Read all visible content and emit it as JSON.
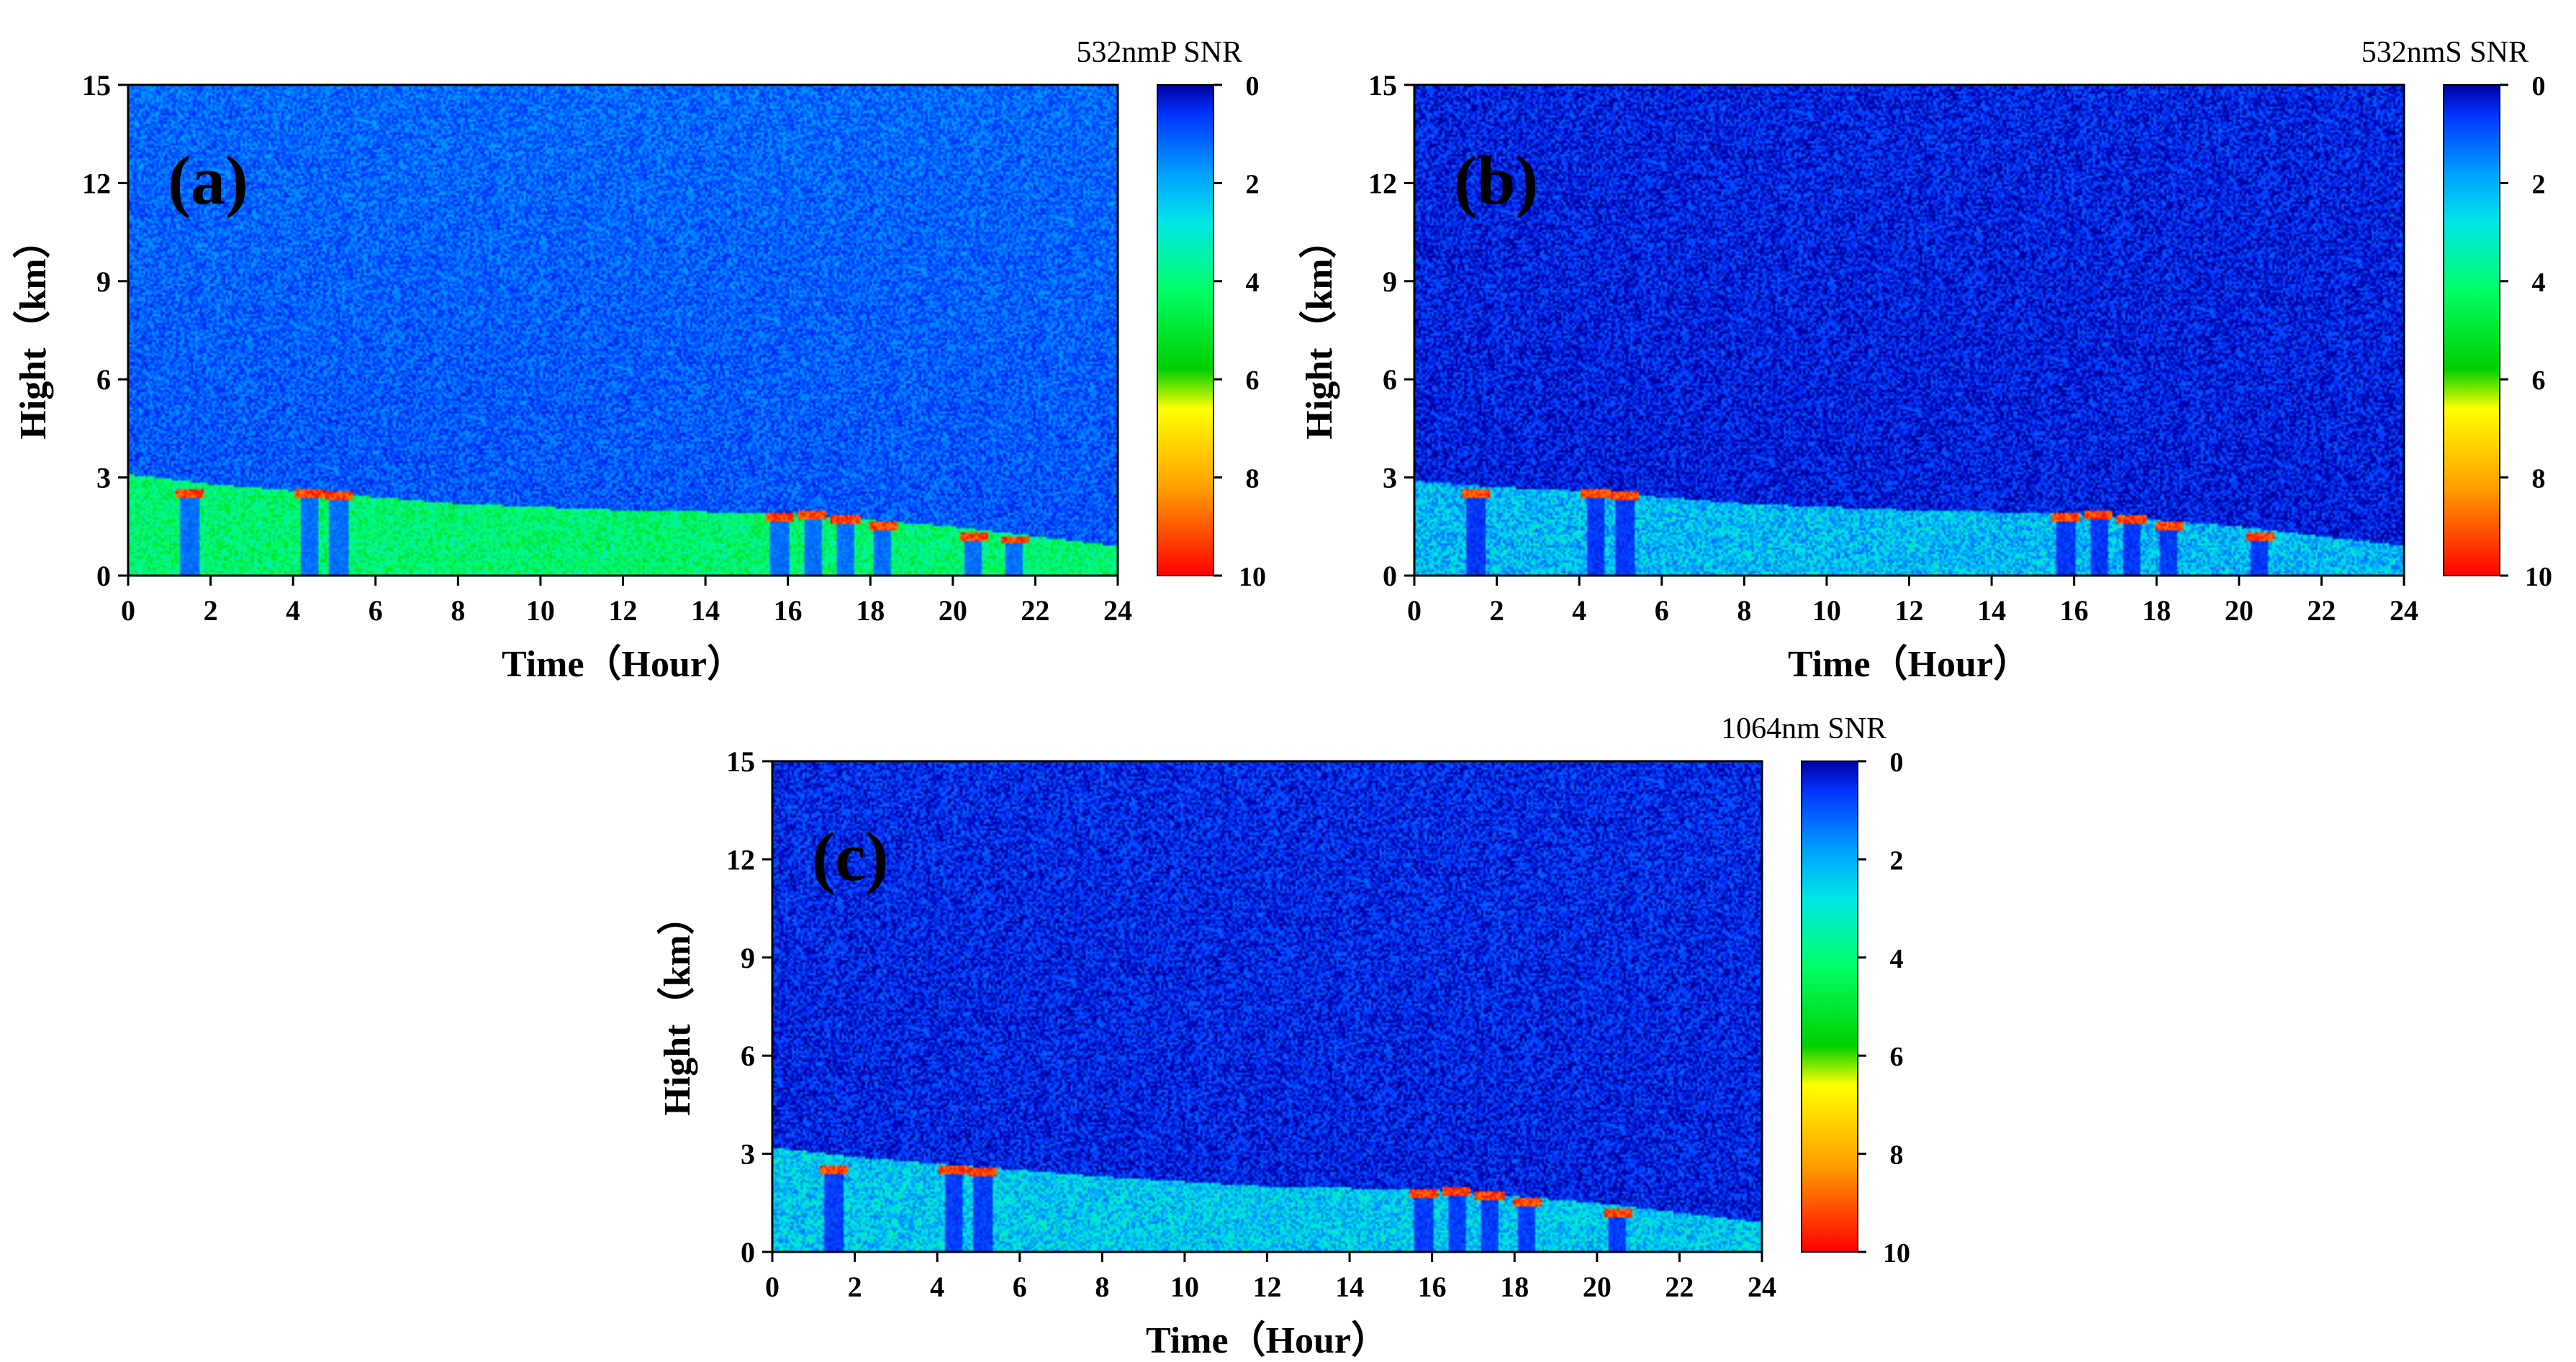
{
  "figure": {
    "description_free": true
  },
  "chart_data": [
    {
      "type": "heatmap",
      "panel_label": "(a)",
      "colorbar_title": "532nmP SNR",
      "xlabel": "Time（Hour）",
      "ylabel": "Hight（km）",
      "xlim": [
        0,
        24
      ],
      "ylim": [
        0,
        15
      ],
      "xticks": [
        "0",
        "2",
        "4",
        "6",
        "8",
        "10",
        "12",
        "14",
        "16",
        "18",
        "20",
        "22",
        "24"
      ],
      "yticks": [
        "0",
        "3",
        "6",
        "9",
        "12",
        "15"
      ],
      "colorbar_range": [
        0,
        10
      ],
      "colorbar_ticks": [
        "0",
        "2",
        "4",
        "6",
        "8",
        "10"
      ],
      "background_snr": 1.6,
      "layer_snr": 4.2,
      "colormap": [
        "#0000a0",
        "#0033ff",
        "#00a0ff",
        "#00e6e6",
        "#00ff66",
        "#00d000",
        "#ffff00",
        "#ffa000",
        "#ff0000"
      ],
      "layer_top_km": [
        [
          0,
          3.1
        ],
        [
          2,
          2.8
        ],
        [
          4,
          2.6
        ],
        [
          8,
          2.2
        ],
        [
          12,
          2.0
        ],
        [
          16,
          1.9
        ],
        [
          20,
          1.5
        ],
        [
          24,
          0.9
        ]
      ],
      "clouds": [
        {
          "t": 1.5,
          "h": 2.5
        },
        {
          "t": 4.4,
          "h": 2.5
        },
        {
          "t": 5.1,
          "h": 2.45
        },
        {
          "t": 15.8,
          "h": 1.8
        },
        {
          "t": 16.6,
          "h": 1.85
        },
        {
          "t": 17.4,
          "h": 1.7
        },
        {
          "t": 18.3,
          "h": 1.5
        },
        {
          "t": 20.5,
          "h": 1.2
        },
        {
          "t": 21.5,
          "h": 1.1
        }
      ]
    },
    {
      "type": "heatmap",
      "panel_label": "(b)",
      "colorbar_title": "532nmS SNR",
      "xlabel": "Time（Hour）",
      "ylabel": "Hight（km）",
      "xlim": [
        0,
        24
      ],
      "ylim": [
        0,
        15
      ],
      "xticks": [
        "0",
        "2",
        "4",
        "6",
        "8",
        "10",
        "12",
        "14",
        "16",
        "18",
        "20",
        "22",
        "24"
      ],
      "yticks": [
        "0",
        "3",
        "6",
        "9",
        "12",
        "15"
      ],
      "colorbar_range": [
        0,
        10
      ],
      "colorbar_ticks": [
        "0",
        "2",
        "4",
        "6",
        "8",
        "10"
      ],
      "background_snr": 0.6,
      "layer_snr": 2.2,
      "colormap": [
        "#0000a0",
        "#0033ff",
        "#00a0ff",
        "#00e6e6",
        "#00ff66",
        "#00d000",
        "#ffff00",
        "#ffa000",
        "#ff0000"
      ],
      "layer_top_km": [
        [
          0,
          2.9
        ],
        [
          2,
          2.7
        ],
        [
          4,
          2.6
        ],
        [
          8,
          2.2
        ],
        [
          12,
          2.0
        ],
        [
          16,
          1.9
        ],
        [
          20,
          1.5
        ],
        [
          24,
          0.9
        ]
      ],
      "clouds": [
        {
          "t": 1.5,
          "h": 2.5
        },
        {
          "t": 4.4,
          "h": 2.5
        },
        {
          "t": 5.1,
          "h": 2.45
        },
        {
          "t": 15.8,
          "h": 1.8
        },
        {
          "t": 16.6,
          "h": 1.85
        },
        {
          "t": 17.4,
          "h": 1.7
        },
        {
          "t": 18.3,
          "h": 1.5
        },
        {
          "t": 20.5,
          "h": 1.2
        }
      ]
    },
    {
      "type": "heatmap",
      "panel_label": "(c)",
      "colorbar_title": "1064nm SNR",
      "xlabel": "Time（Hour）",
      "ylabel": "Hight（km）",
      "xlim": [
        0,
        24
      ],
      "ylim": [
        0,
        15
      ],
      "xticks": [
        "0",
        "2",
        "4",
        "6",
        "8",
        "10",
        "12",
        "14",
        "16",
        "18",
        "20",
        "22",
        "24"
      ],
      "yticks": [
        "0",
        "3",
        "6",
        "9",
        "12",
        "15"
      ],
      "colorbar_range": [
        0,
        10
      ],
      "colorbar_ticks": [
        "0",
        "2",
        "4",
        "6",
        "8",
        "10"
      ],
      "background_snr": 0.7,
      "layer_snr": 2.4,
      "colormap": [
        "#0000a0",
        "#0033ff",
        "#00a0ff",
        "#00e6e6",
        "#00ff66",
        "#00d000",
        "#ffff00",
        "#ffa000",
        "#ff0000"
      ],
      "layer_top_km": [
        [
          0,
          3.2
        ],
        [
          2,
          2.9
        ],
        [
          4,
          2.7
        ],
        [
          8,
          2.3
        ],
        [
          12,
          2.0
        ],
        [
          16,
          1.9
        ],
        [
          20,
          1.5
        ],
        [
          24,
          0.9
        ]
      ],
      "clouds": [
        {
          "t": 1.5,
          "h": 2.5
        },
        {
          "t": 4.4,
          "h": 2.5
        },
        {
          "t": 5.1,
          "h": 2.45
        },
        {
          "t": 15.8,
          "h": 1.8
        },
        {
          "t": 16.6,
          "h": 1.85
        },
        {
          "t": 17.4,
          "h": 1.7
        },
        {
          "t": 18.3,
          "h": 1.5
        },
        {
          "t": 20.5,
          "h": 1.2
        }
      ]
    }
  ]
}
